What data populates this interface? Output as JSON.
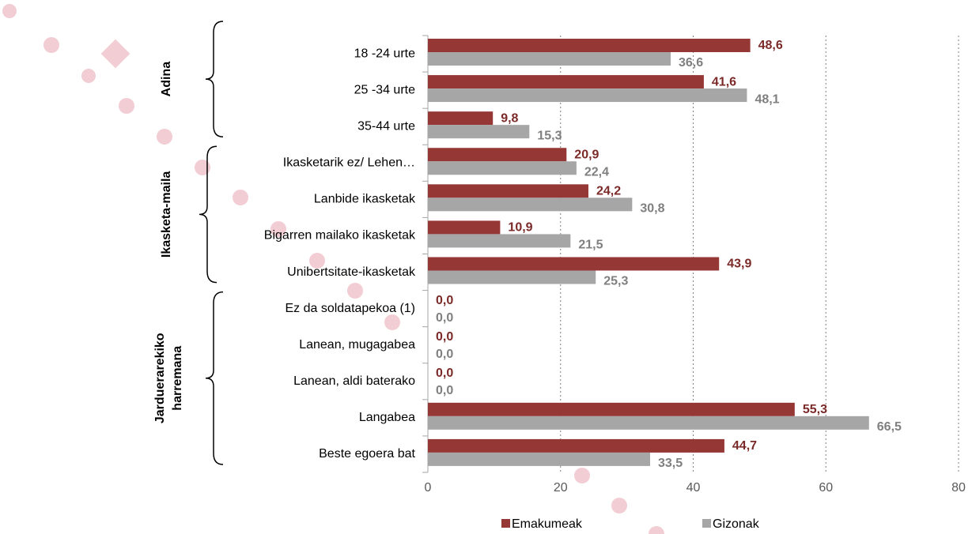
{
  "chart_data": {
    "type": "hbar",
    "categories": [
      "18 -24 urte",
      "25 -34 urte",
      "35-44 urte",
      "Ikasketarik ez/ Lehen…",
      "Lanbide ikasketak",
      "Bigarren mailako ikasketak",
      "Unibertsitate-ikasketak",
      "Ez da soldatapekoa (1)",
      "Lanean, mugagabea",
      "Lanean, aldi baterako",
      "Langabea",
      "Beste egoera bat"
    ],
    "groups": [
      [
        "Adina"
      ],
      [
        "Ikasketa-maila"
      ],
      [
        "Jarduerarekiko",
        "harremana"
      ]
    ],
    "series": [
      {
        "name": "Emakumeak",
        "color": "#953735",
        "label_color": "#7b2a28",
        "values": [
          48.6,
          41.6,
          9.8,
          20.9,
          24.2,
          10.9,
          43.9,
          0,
          0,
          0,
          55.3,
          44.7
        ],
        "value_labels": [
          "48,6",
          "41,6",
          "9,8",
          "20,9",
          "24,2",
          "10,9",
          "43,9",
          "0,0",
          "0,0",
          "0,0",
          "55,3",
          "44,7"
        ]
      },
      {
        "name": "Gizonak",
        "color": "#a6a6a6",
        "label_color": "#7f7f7f",
        "values": [
          36.6,
          48.1,
          15.3,
          22.4,
          30.8,
          21.5,
          25.3,
          0,
          0,
          0,
          66.5,
          33.5
        ],
        "value_labels": [
          "36,6",
          "48,1",
          "15,3",
          "22,4",
          "30,8",
          "21,5",
          "25,3",
          "0,0",
          "0,0",
          "0,0",
          "66,5",
          "33,5"
        ]
      }
    ],
    "xlim": [
      0,
      80
    ],
    "xticks": [
      0,
      20,
      40,
      60,
      80
    ],
    "grid": true,
    "legend": "bottom"
  }
}
